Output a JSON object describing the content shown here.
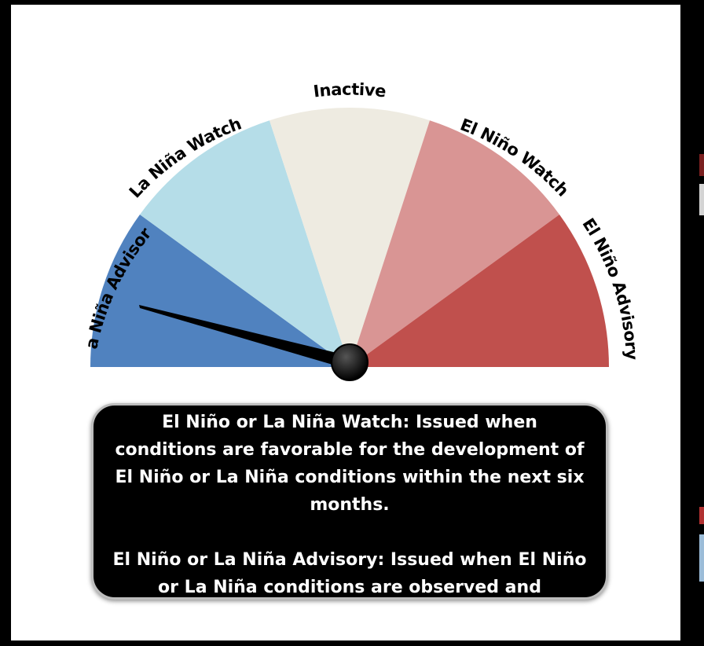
{
  "gauge": {
    "segments": [
      {
        "label": "La Niña Advisory",
        "color": "#5082bf"
      },
      {
        "label": "La Niña Watch",
        "color": "#b5dde8"
      },
      {
        "label": "Inactive",
        "color": "#eeebe1"
      },
      {
        "label": "El Niño Watch",
        "color": "#d99594"
      },
      {
        "label": "El Niño Advisory",
        "color": "#c0504d"
      }
    ],
    "current_status": "La Niña Advisory",
    "needle_color": "#000000"
  },
  "info": {
    "watch_text": "El Niño or La Niña Watch: Issued when conditions are favorable for the development of El Niño or La Niña conditions within the next six months.",
    "advisory_text": "El Niño or La Niña Advisory: Issued when El Niño or La Niña conditions are observed and expected to continue."
  }
}
